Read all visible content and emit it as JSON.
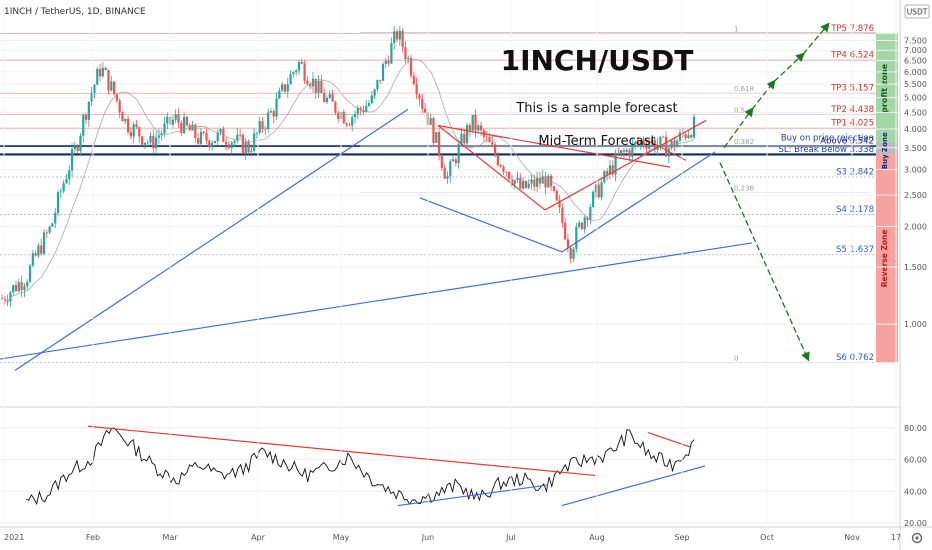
{
  "header": {
    "symbol": "1INCH / TetherUS, 1D, BINANCE",
    "currency_badge": "USDT",
    "corner_icon": "gear-icon"
  },
  "annotations": {
    "title": "1INCH/USDT",
    "line1": "This is a sample forecast",
    "line2": "Mid-Term Forecast"
  },
  "zones": {
    "profit": "profit zone",
    "buy": "Buy Zone",
    "reverse": "Reverse Zone"
  },
  "colors": {
    "up": "#26a69a",
    "down": "#ef5350",
    "profit_zone": "#a5d6a7",
    "buy_zone": "#bbbbbb",
    "reverse_zone": "#f7a1a1",
    "trend_red": "#e53935",
    "trend_blue": "#3f6fd8",
    "forecast_green": "#1b7a1b",
    "support_navy": "#0d2a6b"
  },
  "chart_data": [
    {
      "type": "candlestick",
      "title": "1INCH/USDT",
      "y_scale": "log",
      "ylim": [
        0.6,
        8.8
      ],
      "y_ticks": [
        "1.000",
        "1.500",
        "2.000",
        "2.500",
        "3.000",
        "3.500",
        "4.000",
        "4.500",
        "5.000",
        "5.500",
        "6.000",
        "6.500",
        "7.000",
        "7.500"
      ],
      "x_ticks": [
        "2021",
        "Feb",
        "Mar",
        "Apr",
        "May",
        "Jun",
        "Jul",
        "Aug",
        "Sep",
        "Oct",
        "Nov",
        "17"
      ],
      "levels": [
        {
          "label": "TP5 7.876",
          "value": 7.876,
          "kind": "target"
        },
        {
          "label": "TP4 6.524",
          "value": 6.524,
          "kind": "target"
        },
        {
          "label": "TP3 5.157",
          "value": 5.157,
          "kind": "target"
        },
        {
          "label": "TP2 4.438",
          "value": 4.438,
          "kind": "target"
        },
        {
          "label": "TP1 4.025",
          "value": 4.025,
          "kind": "target"
        },
        {
          "label": "Buy on price rejection",
          "value": 3.62,
          "kind": "info"
        },
        {
          "label": "Above 3.542",
          "value": 3.542,
          "kind": "entry"
        },
        {
          "label": "SL: Break Below 3.338",
          "value": 3.338,
          "kind": "stop"
        },
        {
          "label": "S3 2.842",
          "value": 2.842,
          "kind": "support"
        },
        {
          "label": "S4 2.178",
          "value": 2.178,
          "kind": "support"
        },
        {
          "label": "S5 1.637",
          "value": 1.637,
          "kind": "support"
        },
        {
          "label": "S6 0.762",
          "value": 0.762,
          "kind": "support"
        }
      ],
      "fib_labels": [
        "1",
        "0.618",
        "0.5",
        "0.382",
        "0.236",
        "0"
      ],
      "price_path": [
        1.2,
        1.4,
        2.0,
        3.5,
        6.2,
        4.2,
        3.6,
        4.3,
        3.7,
        3.8,
        3.5,
        4.6,
        6.4,
        5.0,
        4.3,
        4.9,
        7.9,
        4.8,
        2.8,
        4.2,
        3.3,
        2.6,
        2.8,
        1.7,
        2.5,
        3.3,
        3.7,
        3.5,
        4.1
      ]
    },
    {
      "type": "line",
      "title": "",
      "ylim": [
        20,
        90
      ],
      "y_ticks": [
        "80.00",
        "60.00",
        "40.00",
        "20.00"
      ],
      "values": [
        33,
        38,
        52,
        60,
        80,
        68,
        55,
        47,
        57,
        50,
        53,
        65,
        58,
        50,
        55,
        62,
        48,
        40,
        35,
        38,
        44,
        35,
        45,
        48,
        42,
        55,
        60,
        63,
        76,
        62,
        57,
        70
      ]
    }
  ]
}
